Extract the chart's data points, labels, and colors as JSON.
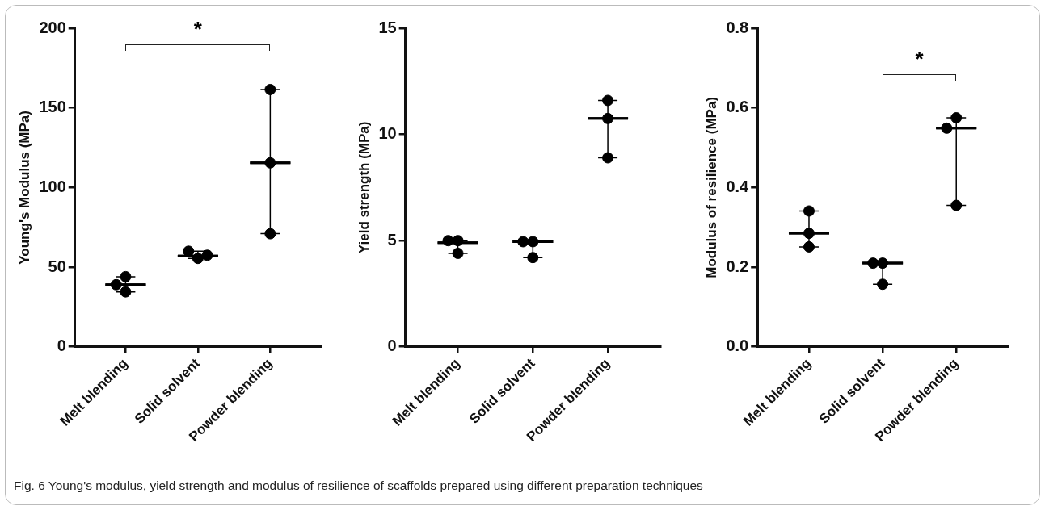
{
  "chart_data": [
    {
      "type": "box",
      "categories": [
        "Melt blending",
        "Solid solvent",
        "Powder blending"
      ],
      "ylabel": "Young's Modulus (MPa)",
      "ylim": [
        0,
        200
      ],
      "yticks": [
        0,
        50,
        100,
        150,
        200
      ],
      "grid": false,
      "marker": "circle",
      "boxes": [
        {
          "low": 34.5,
          "q1": 39,
          "median": 39,
          "q3": 39,
          "high": 44
        },
        {
          "low": 55.5,
          "q1": 57,
          "median": 57,
          "q3": 57,
          "high": 60
        },
        {
          "low": 71,
          "q1": 115.5,
          "median": 115.5,
          "q3": 115.5,
          "high": 161.5
        }
      ],
      "series": [
        {
          "type": "scatter",
          "x": [
            "Melt blending",
            "Melt blending",
            "Melt blending",
            "Solid solvent",
            "Solid solvent",
            "Solid solvent",
            "Powder blending",
            "Powder blending",
            "Powder blending"
          ],
          "values": [
            44,
            34.5,
            39,
            55.5,
            60,
            57.5,
            161.5,
            115.5,
            71
          ],
          "color": "#000000"
        }
      ],
      "annotations": [
        "*",
        "Fig. 6 Young's modulus, yield strength and modulus of resilience of scaffolds prepared using different preparation techniques"
      ]
    },
    {
      "type": "box",
      "categories": [
        "Melt blending",
        "Solid solvent",
        "Powder blending"
      ],
      "ylabel": "Yield strength (MPa)",
      "ylim": [
        0,
        15
      ],
      "yticks": [
        0,
        5,
        10,
        15
      ],
      "grid": false,
      "marker": "circle",
      "boxes": [
        {
          "low": 4.4,
          "q1": 4.9,
          "median": 4.9,
          "q3": 4.9,
          "high": 5.0
        },
        {
          "low": 4.2,
          "q1": 4.95,
          "median": 4.95,
          "q3": 4.95,
          "high": 4.95
        },
        {
          "low": 8.9,
          "q1": 10.75,
          "median": 10.75,
          "q3": 10.75,
          "high": 11.6
        }
      ],
      "series": [
        {
          "type": "scatter",
          "x": [
            "Melt blending",
            "Melt blending",
            "Melt blending",
            "Solid solvent",
            "Solid solvent",
            "Solid solvent",
            "Powder blending",
            "Powder blending",
            "Powder blending"
          ],
          "values": [
            5.0,
            4.4,
            5.0,
            4.95,
            4.2,
            4.95,
            11.6,
            10.75,
            8.9
          ],
          "color": "#000000"
        }
      ]
    },
    {
      "type": "box",
      "categories": [
        "Melt blending",
        "Solid solvent",
        "Powder blending"
      ],
      "ylabel": "Modulus of resilience (MPa)",
      "ylim": [
        0,
        0.8
      ],
      "yticks": [
        {
          "value": 0,
          "label": "0.0"
        },
        0.2,
        0.4,
        0.6,
        0.8
      ],
      "grid": false,
      "marker": "circle",
      "boxes": [
        {
          "low": 0.251,
          "q1": 0.285,
          "median": 0.285,
          "q3": 0.285,
          "high": 0.341
        },
        {
          "low": 0.157,
          "q1": 0.21,
          "median": 0.21,
          "q3": 0.21,
          "high": 0.21
        },
        {
          "low": 0.355,
          "q1": 0.549,
          "median": 0.549,
          "q3": 0.549,
          "high": 0.575
        }
      ],
      "series": [
        {
          "type": "scatter",
          "x": [
            "Melt blending",
            "Melt blending",
            "Melt blending",
            "Solid solvent",
            "Solid solvent",
            "Solid solvent",
            "Powder blending",
            "Powder blending",
            "Powder blending"
          ],
          "values": [
            0.341,
            0.285,
            0.251,
            0.21,
            0.157,
            0.21,
            0.575,
            0.549,
            0.355
          ],
          "color": "#000000"
        }
      ],
      "annotations": [
        "*"
      ]
    }
  ]
}
